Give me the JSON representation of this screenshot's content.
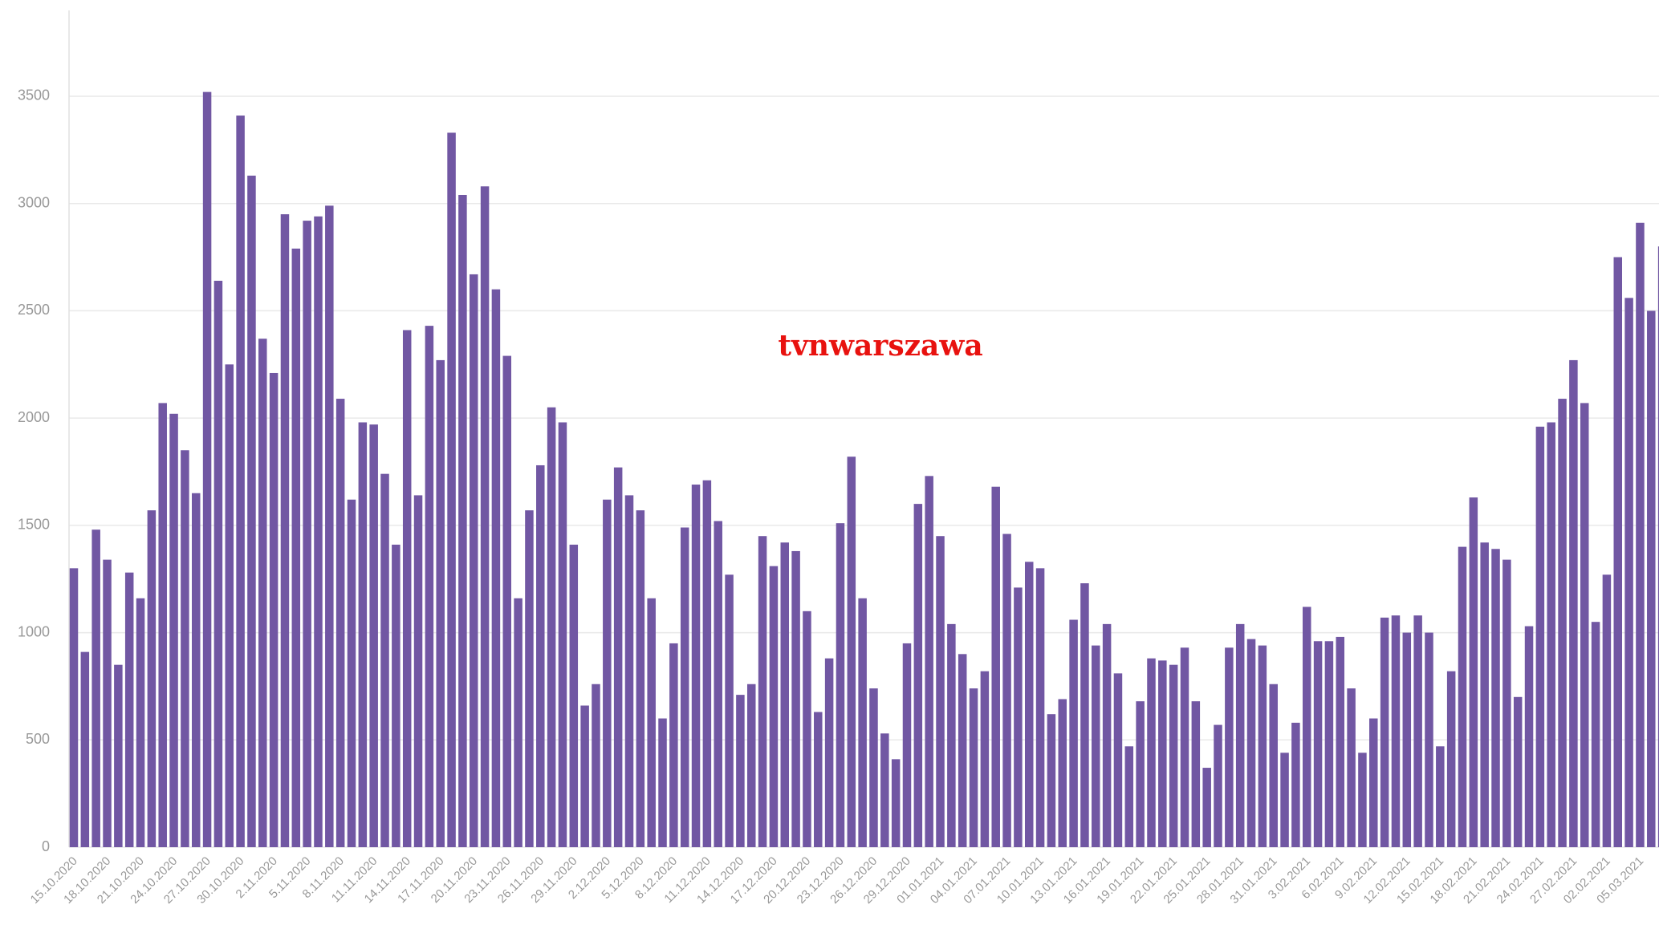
{
  "chart_data": {
    "type": "bar",
    "watermark": "tvnwarszawa",
    "categories": [
      "15.10.2020",
      null,
      null,
      "18.10.2020",
      null,
      null,
      "21.10.2020",
      null,
      null,
      "24.10.2020",
      null,
      null,
      "27.10.2020",
      null,
      null,
      "30.10.2020",
      null,
      null,
      "2.11.2020",
      null,
      null,
      "5.11.2020",
      null,
      null,
      "8.11.2020",
      null,
      null,
      "11.11.2020",
      null,
      null,
      "14.11.2020",
      null,
      null,
      "17.11.2020",
      null,
      null,
      "20.11.2020",
      null,
      null,
      "23.11.2020",
      null,
      null,
      "26.11.2020",
      null,
      null,
      "29.11.2020",
      null,
      null,
      "2.12.2020",
      null,
      null,
      "5.12.2020",
      null,
      null,
      "8.12.2020",
      null,
      null,
      "11.12.2020",
      null,
      null,
      "14.12.2020",
      null,
      null,
      "17.12.2020",
      null,
      null,
      "20.12.2020",
      null,
      null,
      "23.12.2020",
      null,
      null,
      "26.12.2020",
      null,
      null,
      "29.12.2020",
      null,
      null,
      "01.01.2021",
      null,
      null,
      "04.01.2021",
      null,
      null,
      "07.01.2021",
      null,
      null,
      "10.01.2021",
      null,
      null,
      "13.01.2021",
      null,
      null,
      "16.01.2021",
      null,
      null,
      "19.01.2021",
      null,
      null,
      "22.01.2021",
      null,
      null,
      "25.01.2021",
      null,
      null,
      "28.01.2021",
      null,
      null,
      "31.01.2021",
      null,
      null,
      "3.02.2021",
      null,
      null,
      "6.02.2021",
      null,
      null,
      "9.02.2021",
      null,
      null,
      "12.02.2021",
      null,
      null,
      "15.02.2021",
      null,
      null,
      "18.02.2021",
      null,
      null,
      "21.02.2021",
      null,
      null,
      "24.02.2021",
      null,
      null,
      "27.02.2021",
      null,
      null,
      "02.02.2021",
      null,
      null,
      "05.03.2021",
      null,
      null
    ],
    "values": [
      1300,
      910,
      1480,
      1340,
      850,
      1280,
      1160,
      1570,
      2070,
      2020,
      1850,
      1650,
      3520,
      2640,
      2250,
      3410,
      3130,
      2370,
      2210,
      2950,
      2790,
      2920,
      2940,
      2990,
      2090,
      1620,
      1980,
      1970,
      1740,
      1410,
      2410,
      1640,
      2430,
      2270,
      3330,
      3040,
      2670,
      3080,
      2600,
      2290,
      1160,
      1570,
      1780,
      2050,
      1980,
      1410,
      660,
      760,
      1620,
      1770,
      1640,
      1570,
      1160,
      600,
      950,
      1490,
      1690,
      1710,
      1520,
      1270,
      710,
      760,
      1450,
      1310,
      1420,
      1380,
      1100,
      630,
      880,
      1510,
      1820,
      1160,
      740,
      530,
      410,
      950,
      1600,
      1730,
      1450,
      1040,
      900,
      740,
      820,
      1680,
      1460,
      1210,
      1330,
      1300,
      620,
      690,
      1060,
      1230,
      940,
      1040,
      810,
      470,
      680,
      880,
      870,
      850,
      930,
      680,
      370,
      570,
      930,
      1040,
      970,
      940,
      760,
      440,
      580,
      1120,
      960,
      960,
      980,
      740,
      440,
      600,
      1070,
      1080,
      1000,
      1080,
      1000,
      470,
      820,
      1400,
      1630,
      1420,
      1390,
      1340,
      700,
      1030,
      1960,
      1980,
      2090,
      2270,
      2070,
      1050,
      1270,
      2750,
      2560,
      2910,
      2500,
      2800
    ],
    "color": "#7157a3",
    "ylim": [
      0,
      3900
    ],
    "yticks": [
      0,
      500,
      1000,
      1500,
      2000,
      2500,
      3000,
      3500
    ],
    "grid": true
  }
}
